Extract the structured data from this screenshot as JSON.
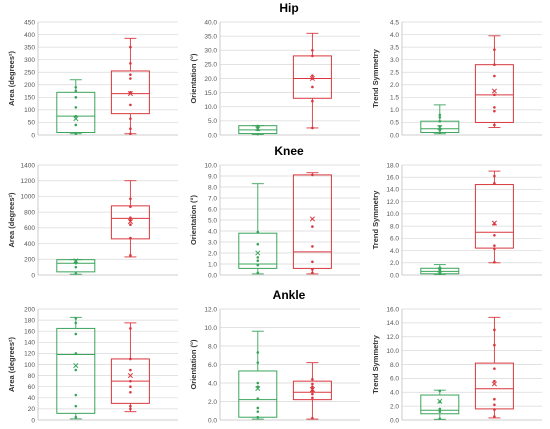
{
  "colors": {
    "green": "#3aa45a",
    "red": "#d9373d"
  },
  "chart_data": [
    {
      "type": "box",
      "panel_title": "Hip",
      "ylabel": "Area (degrees²)",
      "ylim": [
        0,
        450
      ],
      "yticks": [
        0,
        50,
        100,
        150,
        200,
        250,
        300,
        350,
        400,
        450
      ],
      "decimals": 0,
      "series": [
        {
          "name": "",
          "color": "green",
          "min": 5,
          "q1": 10,
          "median": 75,
          "q3": 170,
          "max": 220,
          "mean": 65,
          "points": [
            5,
            40,
            75,
            110,
            150,
            175,
            190
          ]
        },
        {
          "name": "",
          "color": "red",
          "min": 5,
          "q1": 85,
          "median": 165,
          "q3": 255,
          "max": 385,
          "mean": 165,
          "points": [
            5,
            25,
            65,
            120,
            170,
            225,
            240,
            285,
            350
          ]
        }
      ]
    },
    {
      "type": "box",
      "panel_title": "",
      "ylabel": "Orientation (°)",
      "ylim": [
        0,
        40
      ],
      "yticks": [
        0,
        5,
        10,
        15,
        20,
        25,
        30,
        35,
        40
      ],
      "decimals": 1,
      "series": [
        {
          "name": "",
          "color": "green",
          "min": 0.2,
          "q1": 0.5,
          "median": 1.8,
          "q3": 3.3,
          "max": 3.3,
          "mean": 2.2,
          "points": [
            0.3,
            1.8,
            2.5,
            3.2
          ]
        },
        {
          "name": "",
          "color": "red",
          "min": 2.5,
          "q1": 13,
          "median": 20,
          "q3": 28,
          "max": 36,
          "mean": 20,
          "points": [
            2.5,
            12,
            17,
            20,
            21,
            28,
            30
          ]
        }
      ]
    },
    {
      "type": "box",
      "panel_title": "",
      "ylabel": "Trend Symmetry",
      "ylim": [
        0,
        4.5
      ],
      "yticks": [
        0,
        0.5,
        1,
        1.5,
        2,
        2.5,
        3,
        3.5,
        4,
        4.5
      ],
      "decimals": 1,
      "series": [
        {
          "name": "",
          "color": "green",
          "min": 0.05,
          "q1": 0.1,
          "median": 0.25,
          "q3": 0.55,
          "max": 1.2,
          "mean": 0.3,
          "points": [
            0.1,
            0.2,
            0.35,
            0.55,
            0.7,
            0.8
          ]
        },
        {
          "name": "",
          "color": "red",
          "min": 0.3,
          "q1": 0.5,
          "median": 1.6,
          "q3": 2.8,
          "max": 3.95,
          "mean": 1.75,
          "points": [
            0.4,
            0.95,
            1.1,
            1.6,
            2.35,
            2.8,
            3.4
          ]
        }
      ]
    },
    {
      "type": "box",
      "panel_title": "Knee",
      "ylabel": "Area (degrees²)",
      "ylim": [
        0,
        1400
      ],
      "yticks": [
        0,
        200,
        400,
        600,
        800,
        1000,
        1200,
        1400
      ],
      "decimals": 0,
      "series": [
        {
          "name": "",
          "color": "green",
          "min": 10,
          "q1": 40,
          "median": 150,
          "q3": 195,
          "max": 195,
          "mean": 180,
          "points": [
            20,
            100,
            150,
            180
          ]
        },
        {
          "name": "",
          "color": "red",
          "min": 230,
          "q1": 460,
          "median": 720,
          "q3": 880,
          "max": 1200,
          "mean": 680,
          "points": [
            250,
            470,
            640,
            700,
            730,
            870,
            970
          ]
        }
      ]
    },
    {
      "type": "box",
      "panel_title": "",
      "ylabel": "Orientation (°)",
      "ylim": [
        0,
        10
      ],
      "yticks": [
        0,
        1,
        2,
        3,
        4,
        5,
        6,
        7,
        8,
        9,
        10
      ],
      "decimals": 1,
      "series": [
        {
          "name": "",
          "color": "green",
          "min": 0.1,
          "q1": 0.6,
          "median": 1.0,
          "q3": 3.8,
          "max": 8.3,
          "mean": 2.0,
          "points": [
            0.2,
            0.9,
            1.3,
            1.6,
            2.8,
            3.9
          ]
        },
        {
          "name": "",
          "color": "red",
          "min": 0.1,
          "q1": 0.6,
          "median": 2.1,
          "q3": 9.1,
          "max": 9.3,
          "mean": 5.1,
          "points": [
            0.2,
            0.5,
            1.2,
            2.6,
            4.4,
            9.1
          ]
        }
      ]
    },
    {
      "type": "box",
      "panel_title": "",
      "ylabel": "Trend Symmetry",
      "ylim": [
        0,
        18
      ],
      "yticks": [
        0,
        2,
        4,
        6,
        8,
        10,
        12,
        14,
        16,
        18
      ],
      "decimals": 1,
      "series": [
        {
          "name": "",
          "color": "green",
          "min": 0.1,
          "q1": 0.2,
          "median": 0.6,
          "q3": 1.1,
          "max": 1.7,
          "mean": 0.8,
          "points": [
            0.2,
            0.4,
            0.8,
            1.2
          ]
        },
        {
          "name": "",
          "color": "red",
          "min": 2.0,
          "q1": 4.4,
          "median": 7.0,
          "q3": 14.8,
          "max": 17.0,
          "mean": 8.5,
          "points": [
            2.1,
            4.3,
            4.8,
            6.5,
            8.3,
            15.0,
            16.2
          ]
        }
      ]
    },
    {
      "type": "box",
      "panel_title": "Ankle",
      "ylabel": "Area (degrees²)",
      "ylim": [
        0,
        200
      ],
      "yticks": [
        0,
        20,
        40,
        60,
        80,
        100,
        120,
        140,
        160,
        180,
        200
      ],
      "decimals": 0,
      "series": [
        {
          "name": "",
          "color": "green",
          "min": 2,
          "q1": 12,
          "median": 118,
          "q3": 165,
          "max": 185,
          "mean": 98,
          "points": [
            5,
            25,
            45,
            90,
            120,
            155,
            175,
            183
          ]
        },
        {
          "name": "",
          "color": "red",
          "min": 15,
          "q1": 30,
          "median": 70,
          "q3": 110,
          "max": 175,
          "mean": 80,
          "points": [
            20,
            25,
            50,
            60,
            70,
            90,
            110,
            165
          ]
        }
      ]
    },
    {
      "type": "box",
      "panel_title": "",
      "ylabel": "Orientation (°)",
      "ylim": [
        0,
        12
      ],
      "yticks": [
        0,
        2,
        4,
        6,
        8,
        10,
        12
      ],
      "decimals": 1,
      "series": [
        {
          "name": "",
          "color": "green",
          "min": 0.1,
          "q1": 0.3,
          "median": 2.2,
          "q3": 5.3,
          "max": 9.6,
          "mean": 3.4,
          "points": [
            0.3,
            0.9,
            1.3,
            2.3,
            3.6,
            4.0,
            6.2,
            7.3
          ]
        },
        {
          "name": "",
          "color": "red",
          "min": 0.1,
          "q1": 2.2,
          "median": 3.0,
          "q3": 4.2,
          "max": 6.2,
          "mean": 3.3,
          "points": [
            0.2,
            2.4,
            2.8,
            3.1,
            3.4,
            3.6,
            3.9,
            4.4
          ]
        }
      ]
    },
    {
      "type": "box",
      "panel_title": "",
      "ylabel": "Trend Symmetry",
      "ylim": [
        0,
        16
      ],
      "yticks": [
        0,
        2,
        4,
        6,
        8,
        10,
        12,
        14,
        16
      ],
      "decimals": 1,
      "series": [
        {
          "name": "",
          "color": "green",
          "min": 0.1,
          "q1": 0.9,
          "median": 1.4,
          "q3": 3.6,
          "max": 4.3,
          "mean": 2.7,
          "points": [
            0.2,
            1.2,
            1.6,
            2.6,
            4.2
          ]
        },
        {
          "name": "",
          "color": "red",
          "min": 0.3,
          "q1": 1.6,
          "median": 4.5,
          "q3": 8.2,
          "max": 14.8,
          "mean": 5.2,
          "points": [
            0.5,
            1.5,
            2.2,
            3.0,
            5.6,
            7.4,
            10.8,
            13.0
          ]
        }
      ]
    }
  ]
}
